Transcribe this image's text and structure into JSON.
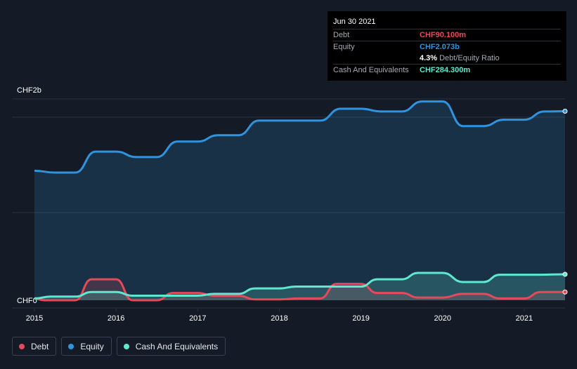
{
  "tooltip": {
    "date": "Jun 30 2021",
    "debt_label": "Debt",
    "debt_value": "CHF90.100m",
    "equity_label": "Equity",
    "equity_value": "CHF2.073b",
    "ratio_value": "4.3%",
    "ratio_label": "Debt/Equity Ratio",
    "cash_label": "Cash And Equivalents",
    "cash_value": "CHF284.300m"
  },
  "legend": [
    {
      "label": "Debt",
      "color": "#e64a5a"
    },
    {
      "label": "Equity",
      "color": "#2e94e0"
    },
    {
      "label": "Cash And Equivalents",
      "color": "#5ee8cf"
    }
  ],
  "colors": {
    "background": "#151b26",
    "debt": "#e64a5a",
    "equity": "#2e94e0",
    "cash": "#5ee8cf",
    "grid": "#2a303b"
  },
  "chart_data": {
    "type": "area",
    "title": "",
    "xlabel": "",
    "ylabel": "",
    "y_top_label": "CHF2b",
    "y_bottom_label": "CHF0",
    "x_ticks": [
      "2015",
      "2016",
      "2017",
      "2018",
      "2019",
      "2020",
      "2021"
    ],
    "xlim": [
      2015.0,
      2021.5
    ],
    "ylim": [
      0,
      2.2
    ],
    "grid": true,
    "series": [
      {
        "name": "Equity",
        "x": [
          2015.0,
          2015.25,
          2015.5,
          2015.75,
          2016.0,
          2016.25,
          2016.5,
          2016.75,
          2017.0,
          2017.25,
          2017.5,
          2017.75,
          2018.0,
          2018.25,
          2018.5,
          2018.75,
          2019.0,
          2019.25,
          2019.5,
          2019.75,
          2020.0,
          2020.25,
          2020.5,
          2020.75,
          2021.0,
          2021.25,
          2021.5
        ],
        "values": [
          1.42,
          1.4,
          1.4,
          1.63,
          1.63,
          1.57,
          1.57,
          1.74,
          1.74,
          1.81,
          1.81,
          1.97,
          1.97,
          1.97,
          1.97,
          2.1,
          2.1,
          2.07,
          2.07,
          2.18,
          2.18,
          1.91,
          1.91,
          1.98,
          1.98,
          2.07,
          2.073
        ]
      },
      {
        "name": "Debt",
        "x": [
          2015.0,
          2015.12,
          2015.5,
          2015.7,
          2016.0,
          2016.2,
          2016.5,
          2016.7,
          2017.0,
          2017.2,
          2017.5,
          2017.7,
          2018.0,
          2018.25,
          2018.5,
          2018.7,
          2019.0,
          2019.2,
          2019.5,
          2019.7,
          2020.0,
          2020.25,
          2020.5,
          2020.7,
          2021.0,
          2021.2,
          2021.5
        ],
        "values": [
          0.02,
          0.0,
          0.0,
          0.23,
          0.23,
          0.0,
          0.0,
          0.08,
          0.08,
          0.05,
          0.05,
          0.01,
          0.01,
          0.02,
          0.02,
          0.18,
          0.18,
          0.08,
          0.08,
          0.03,
          0.03,
          0.07,
          0.07,
          0.02,
          0.02,
          0.09,
          0.0901
        ]
      },
      {
        "name": "Cash And Equivalents",
        "x": [
          2015.0,
          2015.2,
          2015.5,
          2015.7,
          2016.0,
          2016.2,
          2016.5,
          2016.7,
          2017.0,
          2017.2,
          2017.5,
          2017.7,
          2018.0,
          2018.2,
          2018.5,
          2018.7,
          2019.0,
          2019.2,
          2019.5,
          2019.7,
          2020.0,
          2020.25,
          2020.5,
          2020.7,
          2021.0,
          2021.2,
          2021.5
        ],
        "values": [
          0.02,
          0.04,
          0.04,
          0.09,
          0.09,
          0.05,
          0.05,
          0.05,
          0.05,
          0.07,
          0.07,
          0.13,
          0.13,
          0.15,
          0.15,
          0.15,
          0.15,
          0.23,
          0.23,
          0.3,
          0.3,
          0.2,
          0.2,
          0.28,
          0.28,
          0.28,
          0.2843
        ]
      }
    ]
  }
}
